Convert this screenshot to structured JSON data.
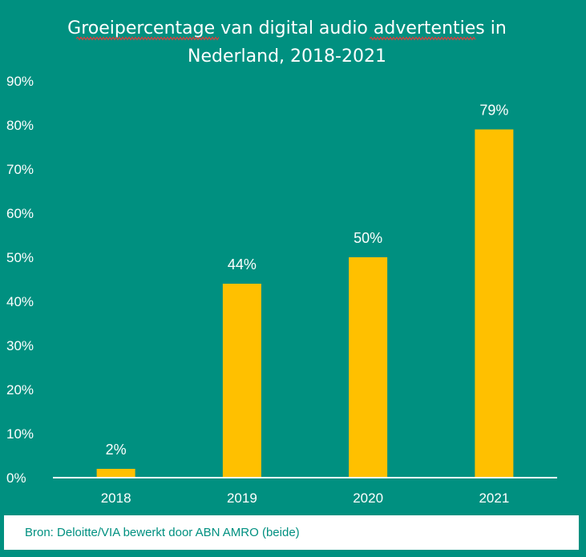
{
  "chart_data": {
    "type": "bar",
    "title_lines": [
      "Groeipercentage van digital audio advertenties in",
      "Nederland, 2018-2021"
    ],
    "categories": [
      "2018",
      "2019",
      "2020",
      "2021"
    ],
    "values": [
      2,
      44,
      50,
      79
    ],
    "data_labels": [
      "2%",
      "44%",
      "50%",
      "79%"
    ],
    "ylim": [
      0,
      90
    ],
    "yticks": [
      0,
      10,
      20,
      30,
      40,
      50,
      60,
      70,
      80,
      90
    ],
    "ytick_labels": [
      "0%",
      "10%",
      "20%",
      "30%",
      "40%",
      "50%",
      "60%",
      "70%",
      "80%",
      "90%"
    ],
    "grid": false,
    "legend": "none",
    "colors": {
      "background": "#009080",
      "bar": "#FFC000",
      "text": "#ffffff",
      "axis": "#ffffff",
      "title_underline": "#d94040"
    }
  },
  "source": {
    "text": "Bron: Deloitte/VIA bewerkt door ABN AMRO (beide)"
  }
}
